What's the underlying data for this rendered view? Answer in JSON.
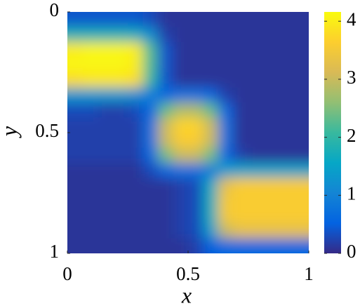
{
  "chart_data": {
    "type": "heatmap",
    "xlabel": "x",
    "ylabel": "y",
    "xlim": [
      0,
      1
    ],
    "ylim": [
      0,
      1
    ],
    "y_reversed": true,
    "xticks": [
      0,
      0.5,
      1
    ],
    "yticks": [
      0,
      0.5,
      1
    ],
    "clim": [
      0,
      4.16
    ],
    "colorbar_ticks": [
      0,
      1,
      2,
      3,
      4
    ],
    "colormap": [
      "#352a87",
      "#0363e1",
      "#1485d4",
      "#06a7c6",
      "#38b99e",
      "#92bf73",
      "#d9ba56",
      "#fcce2e",
      "#f9fb0e"
    ],
    "z": [
      [
        0.4,
        0.4,
        0.4,
        0.4,
        0.4,
        0.3,
        0.1,
        0.1,
        0.1,
        0.1,
        0.1,
        0.1,
        0.1,
        0.1,
        0.1,
        0.1
      ],
      [
        1.8,
        1.8,
        1.8,
        1.8,
        1.7,
        1.2,
        0.2,
        0.1,
        0.1,
        0.1,
        0.1,
        0.1,
        0.1,
        0.1,
        0.1,
        0.1
      ],
      [
        4.0,
        4.1,
        4.1,
        4.1,
        4.0,
        2.2,
        0.4,
        0.1,
        0.1,
        0.1,
        0.1,
        0.1,
        0.1,
        0.1,
        0.1,
        0.1
      ],
      [
        4.1,
        4.1,
        4.1,
        4.1,
        4.0,
        2.2,
        0.4,
        0.1,
        0.1,
        0.1,
        0.1,
        0.1,
        0.1,
        0.1,
        0.1,
        0.1
      ],
      [
        3.8,
        3.9,
        3.9,
        3.9,
        3.8,
        2.0,
        0.4,
        0.1,
        0.1,
        0.1,
        0.1,
        0.1,
        0.1,
        0.1,
        0.1,
        0.1
      ],
      [
        1.3,
        1.3,
        1.3,
        1.3,
        1.2,
        0.9,
        0.6,
        0.7,
        0.7,
        0.6,
        0.2,
        0.1,
        0.1,
        0.1,
        0.1,
        0.1
      ],
      [
        0.3,
        0.3,
        0.2,
        0.2,
        0.3,
        0.6,
        2.3,
        2.8,
        2.8,
        2.3,
        0.6,
        0.1,
        0.1,
        0.1,
        0.1,
        0.1
      ],
      [
        0.2,
        0.2,
        0.2,
        0.2,
        0.2,
        0.7,
        3.0,
        3.7,
        3.7,
        3.0,
        0.7,
        0.1,
        0.1,
        0.1,
        0.1,
        0.1
      ],
      [
        0.2,
        0.2,
        0.2,
        0.2,
        0.2,
        0.7,
        3.0,
        3.6,
        3.6,
        3.0,
        0.7,
        0.1,
        0.1,
        0.1,
        0.1,
        0.1
      ],
      [
        0.2,
        0.2,
        0.2,
        0.2,
        0.2,
        0.6,
        2.4,
        3.0,
        3.0,
        2.4,
        0.6,
        0.2,
        0.1,
        0.1,
        0.1,
        0.1
      ],
      [
        0.1,
        0.1,
        0.1,
        0.1,
        0.1,
        0.3,
        0.6,
        0.7,
        0.7,
        0.9,
        1.4,
        1.5,
        1.5,
        1.5,
        1.5,
        1.5
      ],
      [
        0.1,
        0.1,
        0.1,
        0.1,
        0.1,
        0.1,
        0.1,
        0.2,
        0.3,
        1.6,
        3.3,
        3.6,
        3.6,
        3.6,
        3.6,
        3.6
      ],
      [
        0.1,
        0.1,
        0.1,
        0.1,
        0.1,
        0.1,
        0.1,
        0.2,
        0.3,
        1.7,
        3.5,
        3.6,
        3.6,
        3.6,
        3.6,
        3.6
      ],
      [
        0.1,
        0.1,
        0.1,
        0.1,
        0.1,
        0.1,
        0.1,
        0.2,
        0.3,
        1.7,
        3.5,
        3.6,
        3.6,
        3.6,
        3.6,
        3.6
      ],
      [
        0.1,
        0.1,
        0.1,
        0.1,
        0.1,
        0.1,
        0.1,
        0.2,
        0.3,
        1.4,
        3.0,
        3.3,
        3.3,
        3.3,
        3.3,
        3.3
      ],
      [
        0.1,
        0.1,
        0.1,
        0.1,
        0.1,
        0.1,
        0.1,
        0.1,
        0.2,
        0.5,
        0.6,
        0.6,
        0.6,
        0.6,
        0.6,
        0.6
      ]
    ]
  }
}
